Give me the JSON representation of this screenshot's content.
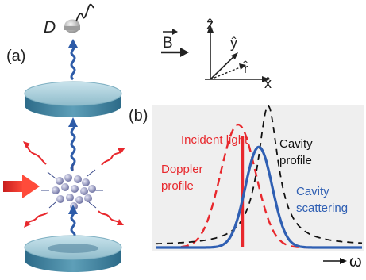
{
  "panel_a": {
    "label": "(a)",
    "detector_label": "D"
  },
  "axes_inset": {
    "field_label": "B",
    "axis_z": "ẑ",
    "axis_y": "ŷ",
    "axis_x": "x̂",
    "axis_r": "r̂"
  },
  "panel_b": {
    "label": "(b)",
    "omega_label": "ω",
    "annotations": {
      "incident_light": "Incident light",
      "doppler_line1": "Doppler",
      "doppler_line2": "profile",
      "cavity_line1": "Cavity",
      "cavity_line2": "profile",
      "scatter_line1": "Cavity",
      "scatter_line2": "scattering"
    },
    "colors": {
      "doppler": "#e8282d",
      "cavity": "#111111",
      "scattering": "#2f5fb3",
      "incident": "#e8282d",
      "background": "#efefef"
    }
  },
  "chart_data": {
    "type": "line",
    "title": "",
    "xlabel": "ω",
    "ylabel": "",
    "series": [
      {
        "name": "Doppler profile",
        "style": "dashed",
        "center": 0.4,
        "width": 0.085,
        "amplitude": 0.88
      },
      {
        "name": "Cavity profile",
        "style": "dashed",
        "center": 0.545,
        "width": 0.06,
        "amplitude": 1.0
      },
      {
        "name": "Cavity scattering",
        "style": "solid",
        "center": 0.5,
        "width": 0.065,
        "amplitude": 0.72
      }
    ],
    "incident_light_position": 0.42,
    "xlim": [
      0,
      1
    ],
    "ylim": [
      0,
      1
    ]
  }
}
